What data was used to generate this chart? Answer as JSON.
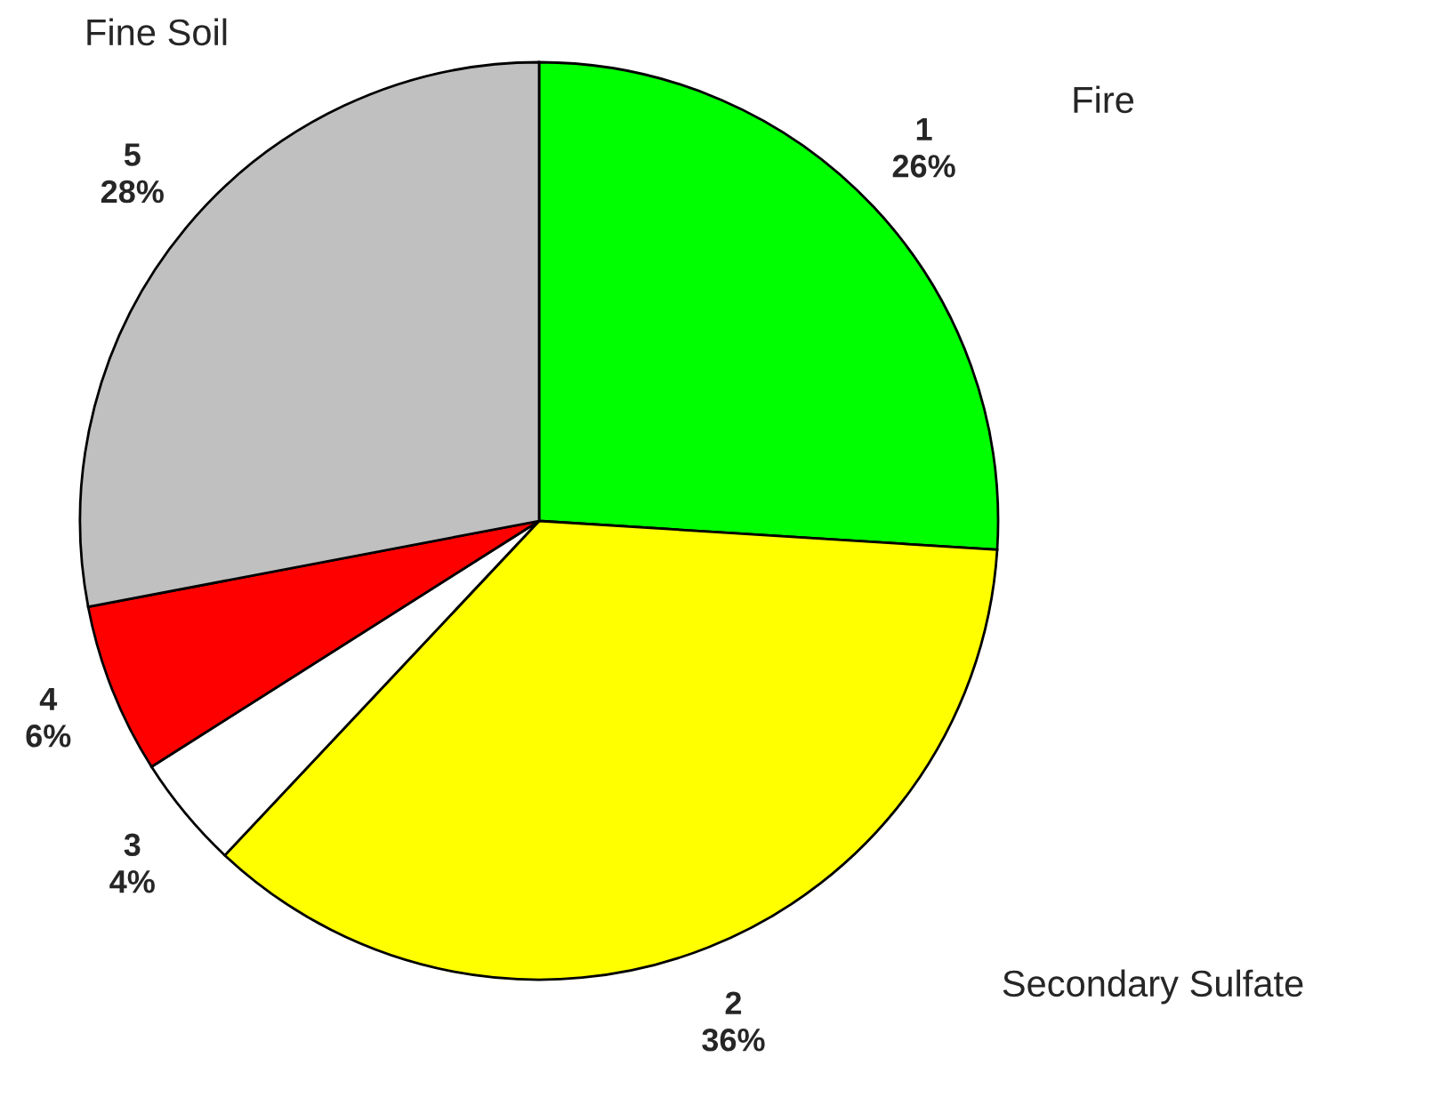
{
  "chart_data": {
    "type": "pie",
    "categories": [
      "1",
      "2",
      "3",
      "4",
      "5"
    ],
    "values": [
      26,
      36,
      4,
      6,
      28
    ],
    "colors": [
      "#00ff00",
      "#ffff00",
      "#ffffff",
      "#ff0000",
      "#c0c0c0"
    ],
    "value_labels": [
      "26%",
      "36%",
      "4%",
      "6%",
      "28%"
    ],
    "annotations": [
      "Fire",
      "Secondary Sulfate",
      "Fine Soil"
    ]
  }
}
